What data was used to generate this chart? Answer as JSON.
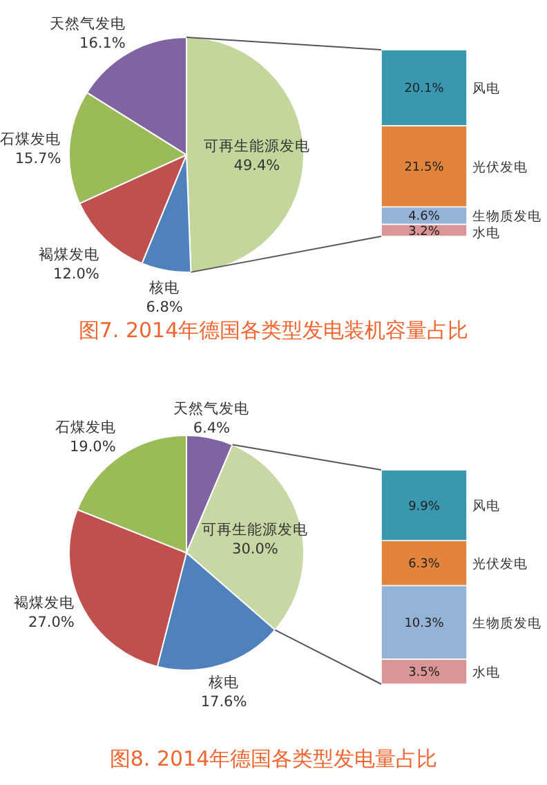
{
  "chart_data": [
    {
      "type": "pie",
      "title": "图7. 2014年德国各类型发电装机容量占比",
      "categories": [
        "可再生能源发电",
        "核电",
        "褐煤发电",
        "石煤发电",
        "天然气发电"
      ],
      "values": [
        49.4,
        6.8,
        12.0,
        15.7,
        16.1
      ],
      "colors": [
        "#c3d69b",
        "#4f81bd",
        "#c0504d",
        "#9bbb59",
        "#8064a2"
      ],
      "value_labels": [
        "49.4%",
        "6.8%",
        "12.0%",
        "15.7%",
        "16.1%"
      ]
    },
    {
      "type": "bar",
      "stacked": true,
      "categories": [
        null
      ],
      "series": [
        {
          "name": "水电",
          "color": "#d99694",
          "values": [
            3.2
          ],
          "value_labels": [
            "3.2%"
          ]
        },
        {
          "name": "生物质发电",
          "color": "#95b3d7",
          "values": [
            4.6
          ],
          "value_labels": [
            "4.6%"
          ]
        },
        {
          "name": "光伏发电",
          "color": "#e2843c",
          "values": [
            21.5
          ],
          "value_labels": [
            "21.5%"
          ]
        },
        {
          "name": "风电",
          "color": "#3a97b0",
          "values": [
            20.1
          ],
          "value_labels": [
            "20.1%"
          ]
        }
      ]
    },
    {
      "type": "pie",
      "title": "图8. 2014年德国各类型发电量占比",
      "categories": [
        "天然气发电",
        "可再生能源发电",
        "核电",
        "褐煤发电",
        "石煤发电"
      ],
      "values": [
        6.4,
        30.0,
        17.6,
        27.0,
        19.0
      ],
      "colors": [
        "#8064a2",
        "#c8d8a4",
        "#4f81bd",
        "#c0504d",
        "#9bbb59"
      ],
      "value_labels": [
        "6.4%",
        "30.0%",
        "17.6%",
        "27.0%",
        "19.0%"
      ]
    },
    {
      "type": "bar",
      "stacked": true,
      "categories": [
        null
      ],
      "series": [
        {
          "name": "水电",
          "color": "#d99694",
          "values": [
            3.5
          ],
          "value_labels": [
            "3.5%"
          ]
        },
        {
          "name": "生物质发电",
          "color": "#95b3d7",
          "values": [
            10.3
          ],
          "value_labels": [
            "10.3%"
          ]
        },
        {
          "name": "光伏发电",
          "color": "#e2843c",
          "values": [
            6.3
          ],
          "value_labels": [
            "6.3%"
          ]
        },
        {
          "name": "风电",
          "color": "#3a97b0",
          "values": [
            9.9
          ],
          "value_labels": [
            "9.9%"
          ]
        }
      ]
    }
  ]
}
